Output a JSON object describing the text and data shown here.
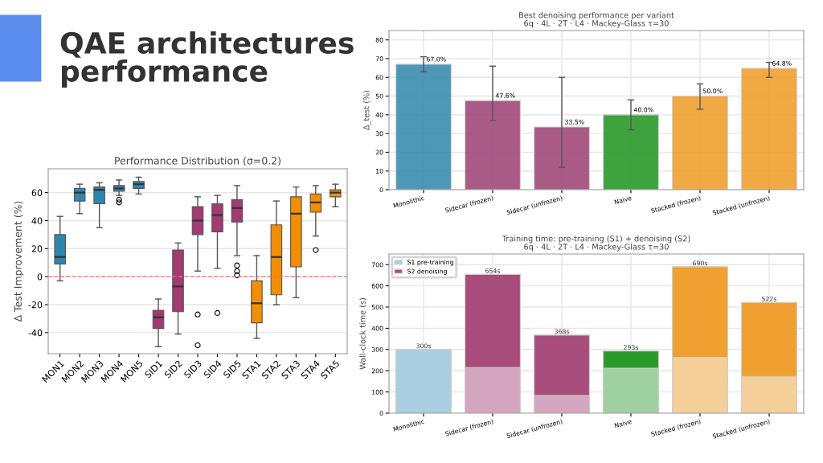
{
  "chart_data": [
    {
      "type": "other",
      "title": "QAE architectures performance"
    },
    {
      "type": "box",
      "title": "Performance Distribution (σ=0.2)",
      "ylabel": "Δ Test Improvement (%)",
      "categories": [
        "MON1",
        "MON2",
        "MON3",
        "MON4",
        "MON5",
        "SID1",
        "SID2",
        "SID3",
        "SID4",
        "SID5",
        "STA1",
        "STA2",
        "STA3",
        "STA4",
        "STA5"
      ],
      "colors": [
        "#2f86ad",
        "#2f86ad",
        "#2f86ad",
        "#2f86ad",
        "#2f86ad",
        "#a23b72",
        "#a23b72",
        "#a23b72",
        "#a23b72",
        "#a23b72",
        "#f18f01",
        "#f18f01",
        "#f18f01",
        "#f18f01",
        "#f18f01"
      ],
      "boxes": [
        {
          "low": -3,
          "q1": 9,
          "median": 14,
          "q3": 30,
          "high": 43
        },
        {
          "low": 45,
          "q1": 54,
          "median": 60,
          "q3": 63,
          "high": 66
        },
        {
          "low": 35,
          "q1": 52,
          "median": 62,
          "q3": 64,
          "high": 67
        },
        {
          "low": 58,
          "q1": 61,
          "median": 63,
          "q3": 65,
          "high": 69,
          "outliers": [
            55,
            53
          ]
        },
        {
          "low": 59,
          "q1": 63,
          "median": 66,
          "q3": 68,
          "high": 71
        },
        {
          "low": -50,
          "q1": -37,
          "median": -29,
          "q3": -24,
          "high": -16
        },
        {
          "low": -41,
          "q1": -25,
          "median": -7,
          "q3": 19,
          "high": 24
        },
        {
          "low": 4,
          "q1": 30,
          "median": 40,
          "q3": 50,
          "high": 57,
          "outliers": [
            -27,
            -49
          ]
        },
        {
          "low": 6,
          "q1": 32,
          "median": 44,
          "q3": 52,
          "high": 58,
          "outliers": [
            -26
          ]
        },
        {
          "low": 15,
          "q1": 39,
          "median": 49,
          "q3": 55,
          "high": 65,
          "outliers": [
            8,
            4,
            1
          ]
        },
        {
          "low": -44,
          "q1": -33,
          "median": -19,
          "q3": -3,
          "high": 15
        },
        {
          "low": -20,
          "q1": -13,
          "median": 14,
          "q3": 37,
          "high": 54
        },
        {
          "low": -15,
          "q1": 7,
          "median": 45,
          "q3": 57,
          "high": 64
        },
        {
          "low": 29,
          "q1": 46,
          "median": 53,
          "q3": 59,
          "high": 65,
          "outliers": [
            19
          ]
        },
        {
          "low": 50,
          "q1": 57,
          "median": 60,
          "q3": 62,
          "high": 66
        }
      ],
      "ylim": [
        -55,
        77
      ],
      "yticks": [
        -40,
        -20,
        0,
        20,
        40,
        60
      ],
      "grid": "y",
      "ref_lines": [
        {
          "axis": "y",
          "value": 0,
          "color": "#ff6b6b",
          "line_style": "dashed"
        }
      ]
    },
    {
      "type": "bar",
      "title": "Best denoising performance per variant",
      "subtitle": "6q · 4L · 2T · L4 · Mackey-Glass τ=30",
      "ylabel": "Δ_test (%)",
      "categories": [
        "Monolithic",
        "Sidecar (frozen)",
        "Sidecar (unfrozen)",
        "Naive",
        "Stacked (frozen)",
        "Stacked (unfrozen)"
      ],
      "values": [
        67,
        47.6,
        33.5,
        40,
        50,
        64.8
      ],
      "colors": [
        "#3a8db0",
        "#a04a7a",
        "#a04a7a",
        "#2a9a2a",
        "#f0a030",
        "#f0a030"
      ],
      "errors": [
        [
          63,
          71
        ],
        [
          37,
          66
        ],
        [
          12,
          60
        ],
        [
          32,
          48
        ],
        [
          43,
          56.5
        ],
        [
          60,
          68
        ]
      ],
      "value_labels": [
        "67.0%",
        "47.6%",
        "33.5%",
        "40.0%",
        "50.0%",
        "64.8%"
      ],
      "ylim": [
        0,
        85
      ],
      "yticks": [
        0,
        10,
        20,
        30,
        40,
        50,
        60,
        70,
        80
      ],
      "grid": true
    },
    {
      "type": "bar",
      "stacked": true,
      "title": "Training time: pre-training (S1) + denoising (S2)",
      "subtitle": "6q · 4L · 2T · L4 · Mackey-Glass τ=30",
      "ylabel": "Wall-clock time (s)",
      "categories": [
        "Monolithic",
        "Sidecar (frozen)",
        "Sidecar (unfrozen)",
        "Naive",
        "Stacked (frozen)",
        "Stacked (unfrozen)"
      ],
      "series": [
        {
          "name": "S1 pre-training",
          "colors": [
            "#a9cfe0",
            "#d4a6c0",
            "#d4a6c0",
            "#9fd09f",
            "#f5cf9a",
            "#f5cf9a"
          ],
          "values": [
            300,
            215,
            83,
            212,
            263,
            173
          ]
        },
        {
          "name": "S2 denoising",
          "colors": [
            "#3a8db0",
            "#a84c7c",
            "#a84c7c",
            "#2a9a2a",
            "#f0a030",
            "#f0a030"
          ],
          "values": [
            null,
            439,
            285,
            81,
            427,
            349
          ]
        }
      ],
      "totals": [
        "300s",
        "654s",
        "368s",
        "293s",
        "690s",
        "522s"
      ],
      "ylim": [
        0,
        750
      ],
      "yticks": [
        0,
        100,
        200,
        300,
        400,
        500,
        600,
        700
      ],
      "grid": true,
      "legend": "top left"
    }
  ]
}
